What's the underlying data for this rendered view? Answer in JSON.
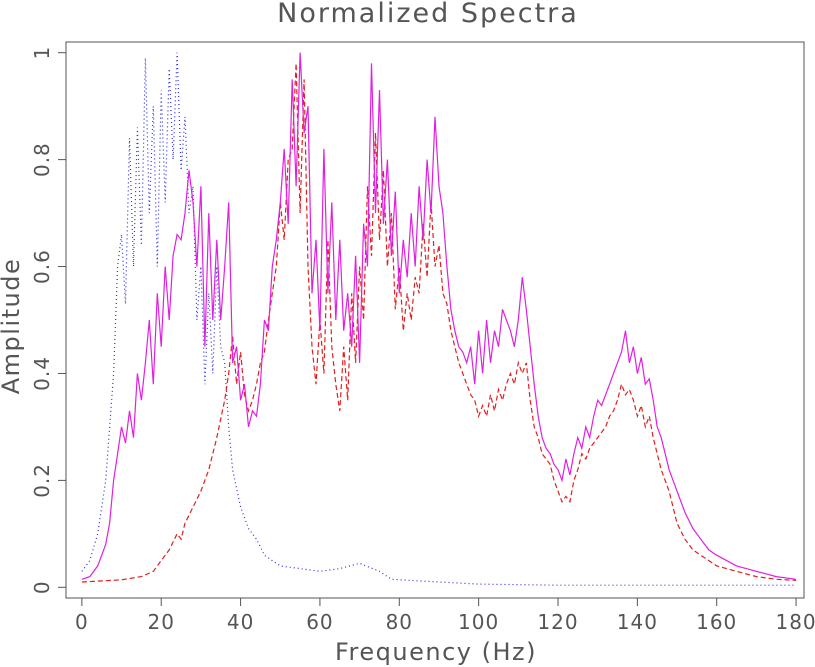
{
  "chart_data": {
    "type": "line",
    "title": "Normalized Spectra",
    "xlabel": "Frequency (Hz)",
    "ylabel": "Amplitude",
    "xlim": [
      -4,
      182
    ],
    "ylim": [
      -0.02,
      1.02
    ],
    "xticks": [
      "0",
      "20",
      "40",
      "60",
      "80",
      "100",
      "120",
      "140",
      "160",
      "180"
    ],
    "yticks": [
      "0",
      "0.2",
      "0.4",
      "0.6",
      "0.8",
      "1"
    ],
    "grid": false,
    "colors": {
      "blue": "#2a2ae0",
      "red": "#e02020",
      "magenta": "#e020e0",
      "frame": "#555555"
    },
    "series": [
      {
        "style": "dotted",
        "color": "#2a2ae0",
        "x": [
          0,
          2,
          4,
          6,
          8,
          9,
          10,
          11,
          12,
          13,
          14,
          15,
          16,
          17,
          18,
          19,
          20,
          21,
          22,
          23,
          24,
          25,
          26,
          27,
          28,
          29,
          30,
          31,
          32,
          33,
          34,
          35,
          36,
          37,
          38,
          40,
          42,
          44,
          46,
          48,
          50,
          55,
          60,
          65,
          70,
          75,
          78,
          85,
          100,
          120,
          140,
          160,
          180
        ],
        "y": [
          0.03,
          0.05,
          0.1,
          0.2,
          0.4,
          0.6,
          0.66,
          0.53,
          0.84,
          0.6,
          0.86,
          0.64,
          0.99,
          0.7,
          0.9,
          0.6,
          0.93,
          0.72,
          0.97,
          0.8,
          1.0,
          0.78,
          0.88,
          0.7,
          0.75,
          0.5,
          0.6,
          0.38,
          0.55,
          0.4,
          0.6,
          0.45,
          0.42,
          0.3,
          0.22,
          0.15,
          0.11,
          0.09,
          0.06,
          0.05,
          0.04,
          0.035,
          0.03,
          0.035,
          0.045,
          0.03,
          0.015,
          0.012,
          0.006,
          0.004,
          0.004,
          0.004,
          0.004
        ]
      },
      {
        "style": "dashed",
        "color": "#e02020",
        "x": [
          0,
          5,
          10,
          15,
          18,
          20,
          22,
          24,
          25,
          26,
          28,
          30,
          32,
          34,
          36,
          37,
          38,
          39,
          40,
          41,
          42,
          43,
          44,
          45,
          46,
          47,
          48,
          49,
          50,
          51,
          52,
          53,
          54,
          55,
          56,
          57,
          58,
          59,
          60,
          61,
          62,
          63,
          64,
          65,
          66,
          67,
          68,
          69,
          70,
          71,
          72,
          73,
          74,
          75,
          76,
          77,
          78,
          79,
          80,
          81,
          82,
          83,
          84,
          85,
          86,
          87,
          88,
          89,
          90,
          91,
          92,
          93,
          94,
          95,
          96,
          97,
          98,
          99,
          100,
          101,
          102,
          103,
          104,
          105,
          106,
          107,
          108,
          109,
          110,
          111,
          112,
          113,
          114,
          115,
          116,
          117,
          118,
          119,
          120,
          121,
          122,
          123,
          124,
          125,
          126,
          127,
          128,
          129,
          130,
          131,
          132,
          133,
          134,
          135,
          136,
          137,
          138,
          139,
          140,
          141,
          142,
          143,
          144,
          146,
          148,
          150,
          152,
          154,
          156,
          158,
          160,
          165,
          170,
          175,
          180
        ],
        "y": [
          0.01,
          0.012,
          0.014,
          0.02,
          0.03,
          0.05,
          0.07,
          0.1,
          0.09,
          0.12,
          0.15,
          0.18,
          0.22,
          0.28,
          0.35,
          0.4,
          0.47,
          0.38,
          0.44,
          0.36,
          0.33,
          0.35,
          0.38,
          0.42,
          0.44,
          0.5,
          0.55,
          0.6,
          0.72,
          0.65,
          0.8,
          0.82,
          0.98,
          0.7,
          0.95,
          0.6,
          0.45,
          0.38,
          0.5,
          0.4,
          0.65,
          0.45,
          0.38,
          0.33,
          0.45,
          0.35,
          0.55,
          0.42,
          0.6,
          0.5,
          0.75,
          0.62,
          0.85,
          0.65,
          0.78,
          0.6,
          0.7,
          0.52,
          0.6,
          0.48,
          0.55,
          0.5,
          0.58,
          0.55,
          0.68,
          0.58,
          0.72,
          0.6,
          0.64,
          0.55,
          0.53,
          0.48,
          0.45,
          0.42,
          0.4,
          0.38,
          0.36,
          0.35,
          0.32,
          0.34,
          0.32,
          0.36,
          0.33,
          0.37,
          0.35,
          0.38,
          0.4,
          0.38,
          0.42,
          0.4,
          0.42,
          0.35,
          0.3,
          0.28,
          0.25,
          0.24,
          0.23,
          0.2,
          0.18,
          0.16,
          0.17,
          0.16,
          0.2,
          0.22,
          0.25,
          0.24,
          0.26,
          0.27,
          0.28,
          0.29,
          0.3,
          0.32,
          0.33,
          0.35,
          0.38,
          0.36,
          0.37,
          0.35,
          0.32,
          0.34,
          0.3,
          0.32,
          0.28,
          0.22,
          0.18,
          0.12,
          0.09,
          0.07,
          0.06,
          0.05,
          0.04,
          0.03,
          0.02,
          0.015,
          0.013
        ]
      },
      {
        "style": "solid",
        "color": "#e020e0",
        "x": [
          0,
          2,
          4,
          6,
          7,
          8,
          9,
          10,
          11,
          12,
          13,
          14,
          15,
          16,
          17,
          18,
          19,
          20,
          21,
          22,
          23,
          24,
          25,
          26,
          27,
          28,
          29,
          30,
          31,
          32,
          33,
          34,
          35,
          36,
          37,
          38,
          39,
          40,
          41,
          42,
          43,
          44,
          45,
          46,
          47,
          48,
          49,
          50,
          51,
          52,
          53,
          54,
          55,
          56,
          57,
          58,
          59,
          60,
          61,
          62,
          63,
          64,
          65,
          66,
          67,
          68,
          69,
          70,
          71,
          72,
          73,
          74,
          75,
          76,
          77,
          78,
          79,
          80,
          81,
          82,
          83,
          84,
          85,
          86,
          87,
          88,
          89,
          90,
          91,
          92,
          93,
          94,
          95,
          96,
          97,
          98,
          99,
          100,
          101,
          102,
          103,
          104,
          105,
          106,
          107,
          108,
          109,
          110,
          111,
          112,
          113,
          114,
          115,
          116,
          117,
          118,
          119,
          120,
          121,
          122,
          123,
          124,
          125,
          126,
          127,
          128,
          129,
          130,
          131,
          132,
          133,
          134,
          135,
          136,
          137,
          138,
          139,
          140,
          141,
          142,
          143,
          144,
          145,
          146,
          148,
          150,
          152,
          154,
          156,
          158,
          160,
          165,
          170,
          175,
          180
        ],
        "y": [
          0.015,
          0.02,
          0.04,
          0.08,
          0.12,
          0.2,
          0.25,
          0.3,
          0.27,
          0.33,
          0.28,
          0.4,
          0.35,
          0.42,
          0.5,
          0.38,
          0.55,
          0.45,
          0.6,
          0.5,
          0.62,
          0.66,
          0.65,
          0.7,
          0.78,
          0.72,
          0.6,
          0.75,
          0.45,
          0.7,
          0.5,
          0.65,
          0.5,
          0.6,
          0.72,
          0.42,
          0.45,
          0.35,
          0.38,
          0.3,
          0.33,
          0.32,
          0.38,
          0.5,
          0.48,
          0.6,
          0.65,
          0.72,
          0.82,
          0.68,
          0.95,
          0.75,
          1.0,
          0.85,
          0.9,
          0.55,
          0.65,
          0.48,
          0.82,
          0.55,
          0.72,
          0.5,
          0.65,
          0.48,
          0.55,
          0.45,
          0.62,
          0.42,
          0.68,
          0.6,
          0.98,
          0.7,
          0.93,
          0.68,
          0.8,
          0.62,
          0.74,
          0.55,
          0.65,
          0.58,
          0.7,
          0.6,
          0.75,
          0.65,
          0.8,
          0.7,
          0.88,
          0.75,
          0.7,
          0.6,
          0.52,
          0.48,
          0.45,
          0.44,
          0.42,
          0.45,
          0.38,
          0.48,
          0.4,
          0.5,
          0.42,
          0.48,
          0.45,
          0.52,
          0.5,
          0.48,
          0.45,
          0.5,
          0.58,
          0.52,
          0.45,
          0.38,
          0.32,
          0.28,
          0.26,
          0.25,
          0.23,
          0.22,
          0.2,
          0.24,
          0.21,
          0.25,
          0.28,
          0.26,
          0.3,
          0.28,
          0.32,
          0.35,
          0.34,
          0.36,
          0.38,
          0.4,
          0.42,
          0.44,
          0.48,
          0.42,
          0.45,
          0.4,
          0.43,
          0.38,
          0.39,
          0.35,
          0.3,
          0.28,
          0.22,
          0.18,
          0.14,
          0.11,
          0.09,
          0.07,
          0.06,
          0.04,
          0.03,
          0.02,
          0.015
        ]
      }
    ]
  }
}
